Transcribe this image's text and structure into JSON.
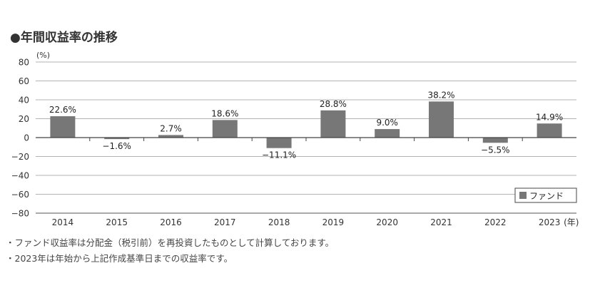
{
  "title": "●年間収益率の推移",
  "chart_data": {
    "type": "bar",
    "categories": [
      "2014",
      "2015",
      "2016",
      "2017",
      "2018",
      "2019",
      "2020",
      "2021",
      "2022",
      "2023"
    ],
    "series": [
      {
        "name": "ファンド",
        "values": [
          22.6,
          -1.6,
          2.7,
          18.6,
          -11.1,
          28.8,
          9.0,
          38.2,
          -5.5,
          14.9
        ]
      }
    ],
    "data_labels": [
      "22.6%",
      "−1.6%",
      "2.7%",
      "18.6%",
      "−11.1%",
      "28.8%",
      "9.0%",
      "38.2%",
      "−5.5%",
      "14.9%"
    ],
    "y_unit": "(%)",
    "x_unit": "(年)",
    "ylim": [
      -80,
      80
    ],
    "yticks": [
      80,
      60,
      40,
      20,
      0,
      -20,
      -40,
      -60,
      -80
    ],
    "ytick_labels": [
      "80",
      "60",
      "40",
      "20",
      "0",
      "−20",
      "−40",
      "−60",
      "−80"
    ],
    "grid": true,
    "legend": "right",
    "bar_color": "#777777"
  },
  "notes": [
    "・ファンド収益率は分配金（税引前）を再投資したものとして計算しております。",
    "・2023年は年始から上記作成基準日までの収益率です。"
  ]
}
